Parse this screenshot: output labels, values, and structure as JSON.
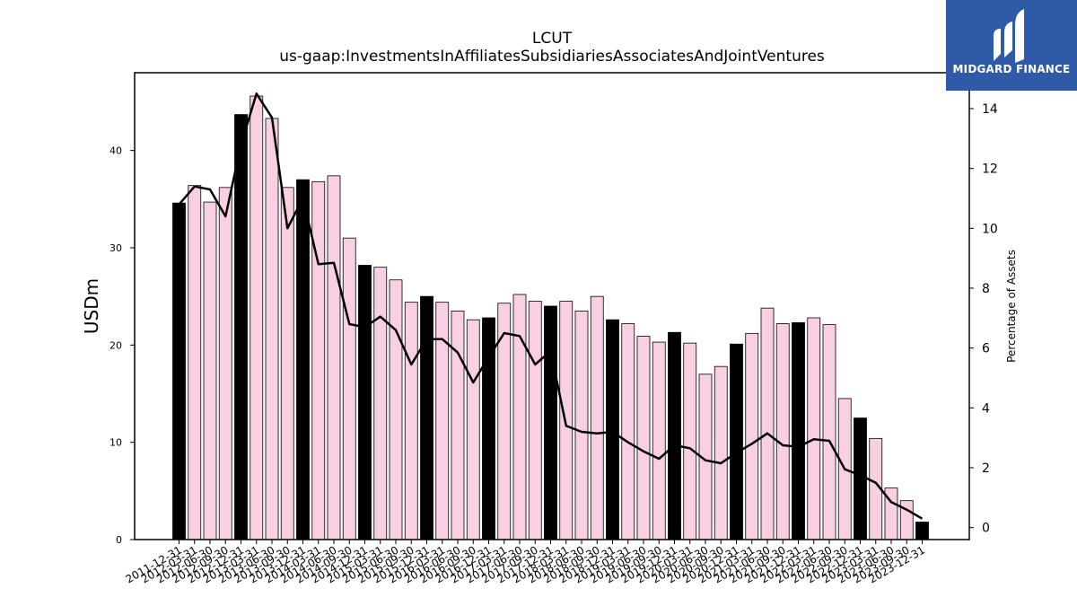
{
  "title": "LCUT",
  "subtitle": "us-gaap:InvestmentsInAffiliatesSubsidiariesAssociatesAndJointVentures",
  "brand": {
    "name": "MIDGARD FINANCE",
    "color": "#2e5aa8"
  },
  "colors": {
    "bar_annual": "#000000",
    "bar_quarter": "#f9cfe3",
    "line": "#000000"
  },
  "chart_data": {
    "type": "bar",
    "title": "LCUT",
    "subtitle": "us-gaap:InvestmentsInAffiliatesSubsidiariesAssociatesAndJointVentures",
    "ylabel": "USDm",
    "y2label": "Percentage of Assets",
    "ylim": [
      0,
      48
    ],
    "y2lim": [
      -0.4,
      15.2
    ],
    "yticks": [
      0,
      10,
      20,
      30,
      40
    ],
    "y2ticks": [
      0,
      2,
      4,
      6,
      8,
      10,
      12,
      14
    ],
    "categories": [
      "2011-12-31",
      "2012-03-31",
      "2012-06-30",
      "2012-09-30",
      "2012-12-31",
      "2013-03-31",
      "2013-06-30",
      "2013-09-30",
      "2013-12-31",
      "2014-03-31",
      "2014-06-30",
      "2014-09-30",
      "2014-12-31",
      "2015-03-31",
      "2015-06-30",
      "2015-09-30",
      "2015-12-31",
      "2016-03-31",
      "2016-06-30",
      "2016-09-30",
      "2016-12-31",
      "2017-03-31",
      "2017-06-30",
      "2017-09-30",
      "2017-12-31",
      "2018-03-31",
      "2018-06-30",
      "2018-09-30",
      "2018-12-31",
      "2019-03-31",
      "2019-06-30",
      "2019-09-30",
      "2019-12-31",
      "2020-03-31",
      "2020-06-30",
      "2020-09-30",
      "2020-12-31",
      "2021-03-31",
      "2021-06-30",
      "2021-09-30",
      "2021-12-31",
      "2022-03-31",
      "2022-06-30",
      "2022-09-30",
      "2022-12-31",
      "2023-03-31",
      "2023-06-30",
      "2023-09-30",
      "2023-12-31"
    ],
    "series": [
      {
        "kind": "bar",
        "axis": "left",
        "values": [
          34.6,
          36.4,
          34.7,
          36.2,
          43.7,
          45.6,
          43.3,
          36.2,
          37.0,
          36.8,
          37.4,
          31.0,
          28.2,
          28.0,
          26.7,
          24.4,
          25.0,
          24.4,
          23.5,
          22.6,
          22.8,
          24.3,
          25.2,
          24.5,
          24.0,
          24.5,
          23.5,
          25.0,
          22.6,
          22.2,
          20.9,
          20.3,
          21.3,
          20.2,
          17.0,
          17.8,
          20.1,
          21.2,
          23.8,
          22.2,
          22.3,
          22.8,
          22.1,
          14.5,
          12.5,
          10.4,
          5.3,
          4.0,
          1.8
        ],
        "annual": [
          true,
          false,
          false,
          false,
          true,
          false,
          false,
          false,
          true,
          false,
          false,
          false,
          true,
          false,
          false,
          false,
          true,
          false,
          false,
          false,
          true,
          false,
          false,
          false,
          true,
          false,
          false,
          false,
          true,
          false,
          false,
          false,
          true,
          false,
          false,
          false,
          true,
          false,
          false,
          false,
          true,
          false,
          false,
          false,
          true,
          false,
          false,
          false,
          true
        ]
      },
      {
        "kind": "line",
        "axis": "right",
        "values": [
          10.8,
          11.4,
          11.3,
          10.4,
          12.8,
          14.5,
          13.7,
          10.0,
          11.0,
          8.8,
          8.85,
          6.8,
          6.7,
          7.05,
          6.6,
          5.45,
          6.3,
          6.3,
          5.85,
          4.85,
          5.7,
          6.5,
          6.4,
          5.45,
          5.9,
          3.4,
          3.2,
          3.15,
          3.2,
          2.85,
          2.55,
          2.3,
          2.75,
          2.65,
          2.25,
          2.15,
          2.5,
          2.8,
          3.15,
          2.75,
          2.7,
          2.95,
          2.9,
          1.95,
          1.75,
          1.5,
          0.85,
          0.6,
          0.3
        ]
      }
    ]
  }
}
